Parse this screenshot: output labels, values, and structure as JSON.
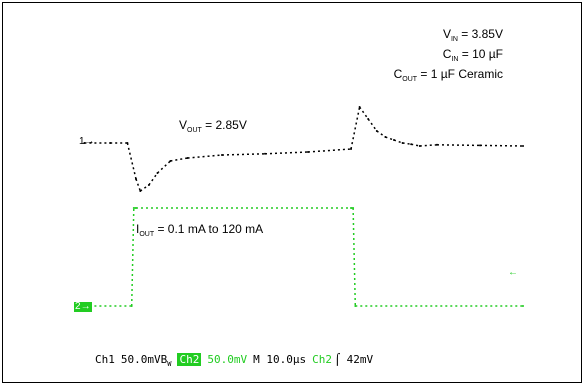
{
  "chart_data": {
    "type": "line",
    "conditions": {
      "vin": {
        "main": "V",
        "sub": "IN",
        "value": " = 3.85V"
      },
      "cin": {
        "main": "C",
        "sub": "IN",
        "value": " = 10 µF"
      },
      "cout": {
        "main": "C",
        "sub": "OUT",
        "value": " = 1 µF Ceramic"
      }
    },
    "annotations": {
      "vout": {
        "main": "V",
        "sub": "OUT",
        "value": " = 2.85V"
      },
      "iout": {
        "main": "I",
        "sub": "OUT",
        "value": " = 0.1 mA to 120 mA"
      }
    },
    "ch1_marker": "1",
    "ch2_marker": "2",
    "series": [
      {
        "channel": "Ch1",
        "color": "#000000",
        "x": [
          -12,
          -6,
          -2,
          0,
          1,
          3,
          5,
          8,
          12,
          20,
          30,
          40,
          50,
          52,
          54,
          56,
          58,
          60,
          62,
          64,
          66,
          70,
          80,
          90
        ],
        "y": [
          0,
          0,
          0,
          -60,
          -80,
          -70,
          -50,
          -30,
          -25,
          -20,
          -18,
          -15,
          -10,
          60,
          40,
          20,
          10,
          5,
          0,
          -2,
          -5,
          -3,
          -4,
          -5
        ]
      },
      {
        "channel": "Ch2",
        "color": "#22cc22",
        "x": [
          -12,
          -1,
          -0.5,
          0,
          50,
          50.5,
          51,
          90
        ],
        "y": [
          0.1,
          0.1,
          120,
          120,
          120,
          120,
          0.1,
          0.1
        ]
      }
    ],
    "status": {
      "ch1": "Ch1",
      "ch1_scale": "50.0mV",
      "ch1_bw": "B",
      "ch1_bw_sub": "W",
      "ch2_tag": "Ch2",
      "ch2_scale": "50.0mV",
      "timebase": "M 10.0µs",
      "trig_source": "Ch2",
      "trig_slope": "⌠",
      "trig_level": "42mV"
    }
  }
}
